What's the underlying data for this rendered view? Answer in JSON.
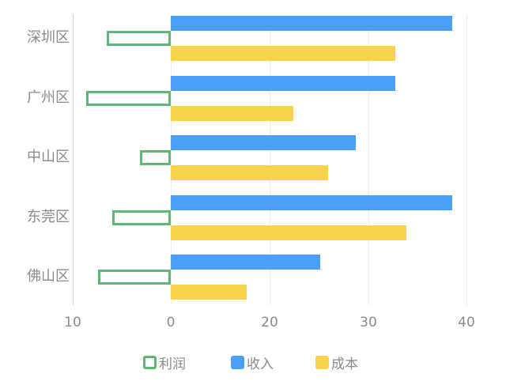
{
  "chart_data": {
    "type": "bar",
    "orientation": "horizontal",
    "categories": [
      "深圳区",
      "广州区",
      "中山区",
      "东莞区",
      "佛山区"
    ],
    "series": [
      {
        "name": "利润",
        "style": "outline",
        "color": "#5cb874",
        "values": [
          -6.5,
          -8.6,
          -3.1,
          -5.9,
          -7.4
        ]
      },
      {
        "name": "收入",
        "style": "filled",
        "color": "#4a9ff9",
        "values": [
          28.5,
          22.7,
          18.7,
          28.5,
          15.1
        ]
      },
      {
        "name": "成本",
        "style": "filled",
        "color": "#fad34d",
        "values": [
          22.7,
          12.4,
          15.9,
          23.8,
          7.7
        ]
      }
    ],
    "x_tick_labels": [
      "10",
      "0",
      "20",
      "30",
      "40"
    ],
    "title": "",
    "xlabel": "",
    "ylabel": "",
    "grid": true,
    "legend_position": "bottom"
  },
  "legend": [
    {
      "label": "利润",
      "color": "#5cb874",
      "outline": true
    },
    {
      "label": "收入",
      "color": "#4a9ff9",
      "outline": false
    },
    {
      "label": "成本",
      "color": "#fad34d",
      "outline": false
    }
  ]
}
